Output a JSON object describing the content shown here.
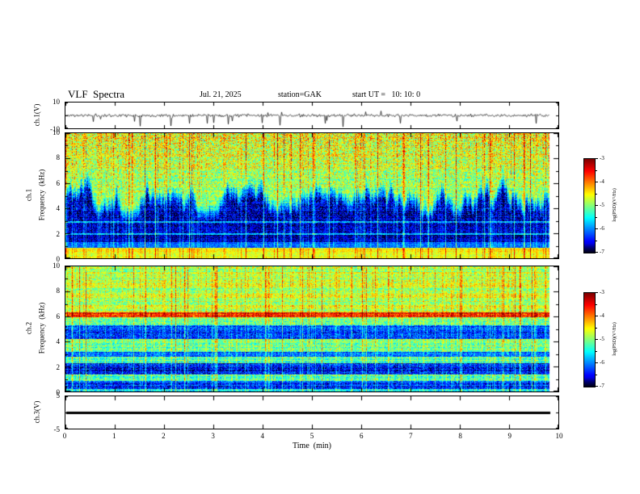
{
  "header": {
    "title": "VLF  Spectra",
    "date": "Jul. 21, 2025",
    "station": "station=GAK",
    "start_ut": "start UT =   10: 10: 0"
  },
  "axes": {
    "time_label": "Time  (min)",
    "x_ticks": [
      "0",
      "1",
      "2",
      "3",
      "4",
      "5",
      "6",
      "7",
      "8",
      "9",
      "10"
    ],
    "ch1_wave": {
      "label": "ch.1(V)",
      "yticks": [
        "10",
        "-10"
      ],
      "ymin": -10,
      "ymax": 10
    },
    "ch1_spec": {
      "label_line1": "ch.1",
      "label_line2": "Frequency  (kHz)",
      "yticks": [
        "10",
        "8",
        "6",
        "4",
        "2",
        "0"
      ],
      "ymin": 0,
      "ymax": 10
    },
    "ch2_spec": {
      "label_line1": "ch.2",
      "label_line2": "Frequency  (kHz)",
      "yticks": [
        "10",
        "8",
        "6",
        "4",
        "2",
        "0"
      ],
      "ymin": 0,
      "ymax": 10
    },
    "ch3_wave": {
      "label": "ch.3(V)",
      "yticks": [
        "5",
        "-5"
      ],
      "ymin": -5,
      "ymax": 5
    }
  },
  "colorbar": {
    "label": "log(PSD)(V²/Hz)",
    "ticks": [
      "-3",
      "-4",
      "-5",
      "-6",
      "-7"
    ],
    "min": -7,
    "max": -3
  },
  "chart_data": {
    "type": "heatmap",
    "title": "VLF Spectra",
    "date": "Jul. 21, 2025",
    "station": "GAK",
    "start_ut": "10:10:0",
    "x": {
      "label": "Time (min)",
      "range": [
        0,
        10
      ],
      "units": "min",
      "data_end": 9.83
    },
    "colorbar": {
      "label": "log(PSD)(V^2/Hz)",
      "range": [
        -7,
        -3
      ],
      "colormap": "jet with black floor"
    },
    "panels": [
      {
        "name": "ch.1 voltage waveform",
        "type": "line",
        "units": "V",
        "ylim": [
          -10,
          10
        ],
        "summary": "broadband noise of about ±1.5 V around 0 with sparse impulsive spikes, mostly downward reaching near -9 V",
        "render": {
          "seed": 11,
          "noise_v": 1.1,
          "spike_down_prob": 0.025,
          "spike_up_prob": 0.008
        }
      },
      {
        "name": "ch.1 spectrogram",
        "type": "heatmap",
        "units": "kHz",
        "ylim": [
          0,
          10
        ],
        "summary": "bright cyan-green band 0-0.9 kHz; nearly black 1.4-4.5 kHz region crossed by dense vertical sferic streaks; ragged transition near 5 kHz; green-yellow field with red speckles intensifying from 6 to 10 kHz",
        "render": {
          "seed": 21,
          "fmax": 10,
          "edge_mean": 4.4,
          "edge_ramp": 1.3,
          "bright_low_band": [
            0,
            0.85,
            0.58
          ],
          "mid_band": [
            0.85,
            1.35,
            0.22
          ],
          "dark_level": 0.06,
          "top_base": 0.5,
          "top_start": 6,
          "top_slope": 0.022,
          "lines": [
            [
              1.95,
              0.3
            ],
            [
              2.95,
              0.27
            ]
          ],
          "noise_base": 0.07,
          "noise_slope": 0.013,
          "row_noise": 0.045,
          "streak_gain": 0.33,
          "streak_big": 0.07,
          "streak_med": 0.28
        }
      },
      {
        "name": "ch.2 spectrogram",
        "type": "heatmap",
        "units": "kHz",
        "ylim": [
          0,
          10
        ],
        "summary": "diffuse green-yellow field with dark horizontal bands near 0.2-0.9, 1.4-2.3 and 4.2-5.3 kHz, a bright yellow line near 6.1-6.3 kHz, dense vertical streaks throughout",
        "render": {
          "seed": 31,
          "fmax": 10,
          "bands": [
            [
              0,
              0.2,
              0.33
            ],
            [
              0.2,
              0.9,
              0.13
            ],
            [
              0.9,
              1.4,
              0.44
            ],
            [
              1.4,
              2.3,
              0.12
            ],
            [
              2.3,
              2.8,
              0.4
            ],
            [
              2.8,
              3.2,
              0.2
            ],
            [
              3.2,
              4.2,
              0.46
            ],
            [
              4.2,
              5.3,
              0.16
            ],
            [
              5.3,
              6.0,
              0.44
            ],
            [
              6.0,
              6.35,
              0.78
            ],
            [
              6.35,
              10,
              0.52
            ]
          ],
          "noise_base": 0.12,
          "noise_slope": 0,
          "row_noise": 0.07,
          "streak_gain": 0.28,
          "streak_big": 0.08,
          "streak_med": 0.3
        }
      },
      {
        "name": "ch.3 voltage waveform",
        "type": "line",
        "units": "V",
        "ylim": [
          -5,
          5
        ],
        "summary": "constant 0 V flat thick trace across the full record",
        "render": {
          "seed": 41,
          "value": 0
        }
      }
    ]
  }
}
